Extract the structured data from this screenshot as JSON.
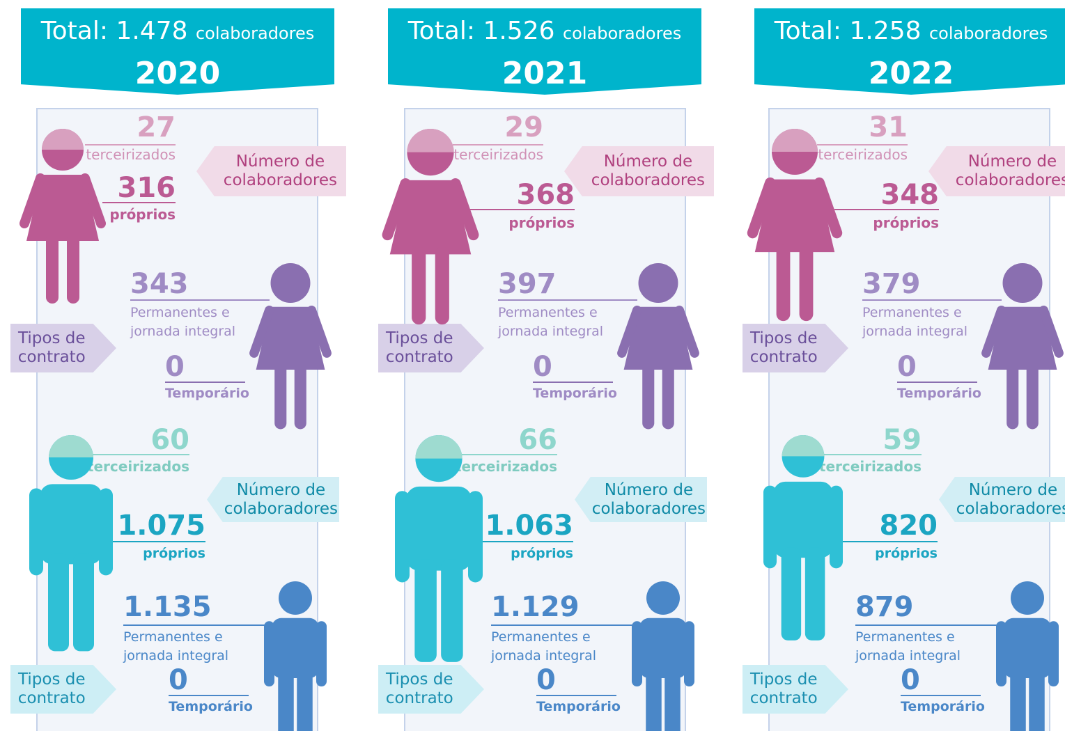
{
  "panels": [
    {
      "header": {
        "total_prefix": "Total:",
        "total": "1.478",
        "total_unit": "colaboradores",
        "year": "2020"
      },
      "women": {
        "outsourced": "27",
        "outsourced_label": "terceirizados",
        "own": "316",
        "own_label": "próprios",
        "count_tag": [
          "Número de",
          "colaboradores"
        ],
        "permanent": "343",
        "permanent_label": [
          "Permanentes e",
          "jornada integral"
        ],
        "contract_tag": [
          "Tipos de",
          "contrato"
        ],
        "temporary": "0",
        "temporary_label": "Temporário"
      },
      "men": {
        "outsourced": "60",
        "outsourced_label": "terceirizados",
        "own": "1.075",
        "own_label": "próprios",
        "count_tag": [
          "Número de",
          "colaboradores"
        ],
        "permanent": "1.135",
        "permanent_label": [
          "Permanentes e",
          "jornada integral"
        ],
        "contract_tag": [
          "Tipos de",
          "contrato"
        ],
        "temporary": "0",
        "temporary_label": "Temporário"
      }
    },
    {
      "header": {
        "total_prefix": "Total:",
        "total": "1.526",
        "total_unit": "colaboradores",
        "year": "2021"
      },
      "women": {
        "outsourced": "29",
        "outsourced_label": "terceirizados",
        "own": "368",
        "own_label": "próprios",
        "count_tag": [
          "Número de",
          "colaboradores"
        ],
        "permanent": "397",
        "permanent_label": [
          "Permanentes e",
          "jornada integral"
        ],
        "contract_tag": [
          "Tipos de",
          "contrato"
        ],
        "temporary": "0",
        "temporary_label": "Temporário"
      },
      "men": {
        "outsourced": "66",
        "outsourced_label": "terceirizados",
        "own": "1.063",
        "own_label": "próprios",
        "count_tag": [
          "Número de",
          "colaboradores"
        ],
        "permanent": "1.129",
        "permanent_label": [
          "Permanentes e",
          "jornada integral"
        ],
        "contract_tag": [
          "Tipos de",
          "contrato"
        ],
        "temporary": "0",
        "temporary_label": "Temporário"
      }
    },
    {
      "header": {
        "total_prefix": "Total:",
        "total": "1.258",
        "total_unit": "colaboradores",
        "year": "2022"
      },
      "women": {
        "outsourced": "31",
        "outsourced_label": "terceirizados",
        "own": "348",
        "own_label": "próprios",
        "count_tag": [
          "Número de",
          "colaboradores"
        ],
        "permanent": "379",
        "permanent_label": [
          "Permanentes e",
          "jornada integral"
        ],
        "contract_tag": [
          "Tipos de",
          "contrato"
        ],
        "temporary": "0",
        "temporary_label": "Temporário"
      },
      "men": {
        "outsourced": "59",
        "outsourced_label": "terceirizados",
        "own": "820",
        "own_label": "próprios",
        "count_tag": [
          "Número de",
          "colaboradores"
        ],
        "permanent": "879",
        "permanent_label": [
          "Permanentes e",
          "jornada integral"
        ],
        "contract_tag": [
          "Tipos de",
          "contrato"
        ],
        "temporary": "0",
        "temporary_label": "Temporário"
      }
    }
  ]
}
